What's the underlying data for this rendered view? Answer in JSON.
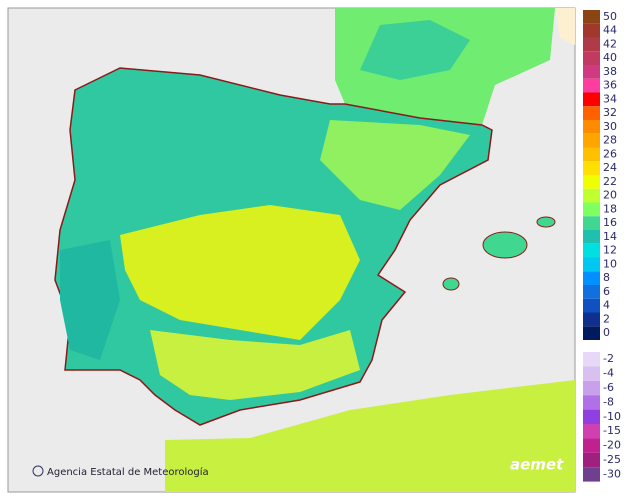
{
  "legend": {
    "positive": [
      {
        "label": 50,
        "color": "#8b4513"
      },
      {
        "label": 44,
        "color": "#a0392b"
      },
      {
        "label": 42,
        "color": "#b03a48"
      },
      {
        "label": 40,
        "color": "#c03a62"
      },
      {
        "label": 38,
        "color": "#d03a80"
      },
      {
        "label": 36,
        "color": "#ff3ca0"
      },
      {
        "label": 34,
        "color": "#ff0000"
      },
      {
        "label": 32,
        "color": "#ff6000"
      },
      {
        "label": 30,
        "color": "#ff8c00"
      },
      {
        "label": 28,
        "color": "#ffa500"
      },
      {
        "label": 26,
        "color": "#ffc000"
      },
      {
        "label": 24,
        "color": "#ffe000"
      },
      {
        "label": 22,
        "color": "#f0ff00"
      },
      {
        "label": 20,
        "color": "#c0ff30"
      },
      {
        "label": 18,
        "color": "#80ff60"
      },
      {
        "label": 16,
        "color": "#40d890"
      },
      {
        "label": 14,
        "color": "#20c0b0"
      },
      {
        "label": 12,
        "color": "#00e0e0"
      },
      {
        "label": 10,
        "color": "#00c8f0"
      },
      {
        "label": 8,
        "color": "#0090ff"
      },
      {
        "label": 6,
        "color": "#1070e0"
      },
      {
        "label": 4,
        "color": "#1050c0"
      },
      {
        "label": 2,
        "color": "#103090"
      },
      {
        "label": 0,
        "color": "#001a60"
      }
    ],
    "negative": [
      {
        "label": -2,
        "color": "#e8d8f8"
      },
      {
        "label": -4,
        "color": "#d8c0f0"
      },
      {
        "label": -6,
        "color": "#c8a0ec"
      },
      {
        "label": -8,
        "color": "#b070e8"
      },
      {
        "label": -10,
        "color": "#9040e0"
      },
      {
        "label": -15,
        "color": "#d040b0"
      },
      {
        "label": -20,
        "color": "#c02090"
      },
      {
        "label": -25,
        "color": "#a02080"
      },
      {
        "label": -30,
        "color": "#704090"
      }
    ]
  },
  "footer": {
    "credit": "Agencia Estatal de Meteorología",
    "logo": "aemet"
  }
}
